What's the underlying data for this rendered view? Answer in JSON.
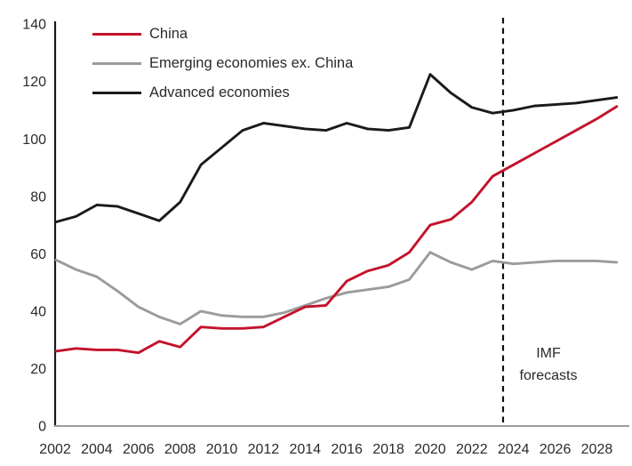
{
  "chart": {
    "annotation": {
      "line1": "IMF",
      "line2": "forecasts"
    },
    "legend_labels": {
      "china": "China",
      "emerging": "Emerging economies ex. China",
      "advanced": "Advanced economies"
    }
  },
  "chart_data": {
    "type": "line",
    "title": "",
    "xlabel": "",
    "ylabel": "",
    "x": [
      2002,
      2003,
      2004,
      2005,
      2006,
      2007,
      2008,
      2009,
      2010,
      2011,
      2012,
      2013,
      2014,
      2015,
      2016,
      2017,
      2018,
      2019,
      2020,
      2021,
      2022,
      2023,
      2024,
      2025,
      2026,
      2027,
      2028,
      2029
    ],
    "series": [
      {
        "name": "China",
        "color": "#c4122a",
        "values": [
          26,
          27,
          26.5,
          26.5,
          25.5,
          29.5,
          27.5,
          34.5,
          34,
          34,
          34.5,
          38,
          41.5,
          42,
          50.5,
          54,
          56,
          60.5,
          70,
          72,
          78,
          87,
          91,
          95,
          99,
          103,
          107,
          111.5
        ]
      },
      {
        "name": "Emerging economies ex. China",
        "color": "#9b9b9b",
        "values": [
          58,
          54.5,
          52,
          47,
          41.5,
          38,
          35.5,
          40,
          38.5,
          38,
          38,
          39.5,
          42,
          44.5,
          46.5,
          47.5,
          48.5,
          51,
          60.5,
          57,
          54.5,
          57.5,
          56.5,
          57,
          57.5,
          57.5,
          57.5,
          57
        ]
      },
      {
        "name": "Advanced economies",
        "color": "#1a1a1a",
        "values": [
          71,
          73,
          77,
          76.5,
          74,
          71.5,
          78,
          91,
          97,
          103,
          105.5,
          104.5,
          103.5,
          103,
          105.5,
          103.5,
          103,
          104,
          122.5,
          116,
          111,
          109,
          110,
          111.5,
          112,
          112.5,
          113.5,
          114.5
        ]
      }
    ],
    "x_ticks": [
      2002,
      2004,
      2006,
      2008,
      2010,
      2012,
      2014,
      2016,
      2018,
      2020,
      2022,
      2024,
      2026,
      2028
    ],
    "y_ticks": [
      0,
      20,
      40,
      60,
      80,
      100,
      120,
      140
    ],
    "xlim": [
      2002,
      2029
    ],
    "ylim": [
      0,
      140
    ],
    "grid": false,
    "legend_position": "top-left-inside",
    "forecast_divider_x": 2023.5,
    "annotation": "IMF forecasts",
    "axis_text_color": "#2b2a29",
    "x_axis_color": "#9b9b9b",
    "y_axis_color": "#1a1a1a",
    "divider_color": "#111111"
  }
}
